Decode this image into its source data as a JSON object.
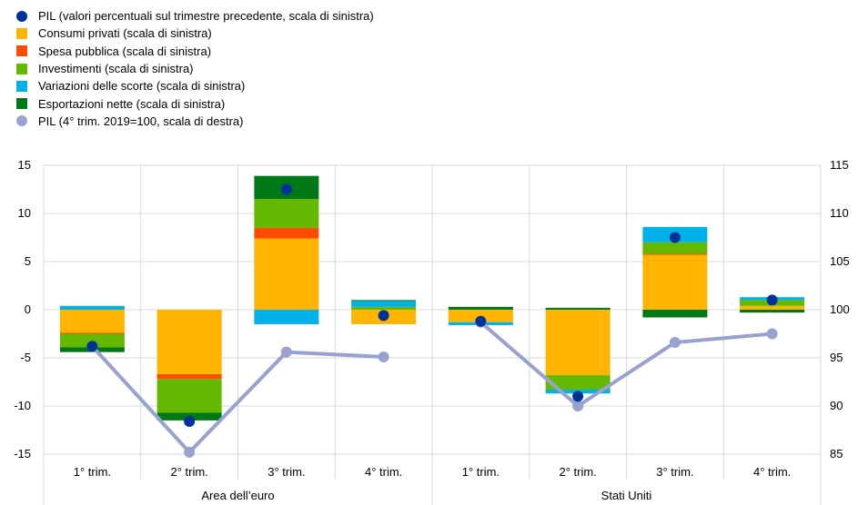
{
  "chart_data": {
    "type": "bar",
    "stacked": true,
    "groups": [
      "Area dell’euro",
      "Stati Uniti"
    ],
    "categories": [
      "1° trim.",
      "2° trim.",
      "3° trim.",
      "4° trim.",
      "1° trim.",
      "2° trim.",
      "3° trim.",
      "4° trim."
    ],
    "series": [
      {
        "name": "Consumi privati (scala di sinistra)",
        "color": "#FFB400",
        "values": [
          -2.4,
          -6.7,
          7.4,
          -1.5,
          -1.3,
          -6.8,
          5.7,
          0.4
        ]
      },
      {
        "name": "Spesa pubblica (scala di sinistra)",
        "color": "#FF4B00",
        "values": [
          -0.1,
          -0.5,
          1.1,
          0.0,
          0.0,
          0.0,
          0.1,
          0.0
        ]
      },
      {
        "name": "Investimenti (scala di sinistra)",
        "color": "#65B800",
        "values": [
          -1.4,
          -3.5,
          3.0,
          0.3,
          0.0,
          -1.5,
          1.2,
          0.6
        ]
      },
      {
        "name": "Variazioni delle scorte (scala di sinistra)",
        "color": "#00B1EA",
        "values": [
          0.4,
          0.0,
          -1.5,
          0.6,
          -0.3,
          -0.4,
          1.6,
          0.3
        ]
      },
      {
        "name": "Esportazioni nette (scala di sinistra)",
        "color": "#007816",
        "values": [
          -0.5,
          -0.8,
          2.4,
          0.1,
          0.3,
          0.2,
          -0.8,
          -0.3
        ]
      }
    ],
    "gdp_qoq": {
      "name": "PIL (valori percentuali sul trimestre precedente, scala di sinistra)",
      "color": "#003299",
      "values": [
        -3.8,
        -11.6,
        12.5,
        -0.6,
        -1.2,
        -9.0,
        7.5,
        1.0
      ]
    },
    "gdp_index": {
      "name": "PIL (4° trim. 2019=100, scala di destra)",
      "color": "#98A1D0",
      "values": [
        96.2,
        85.2,
        95.6,
        95.1,
        98.7,
        90.0,
        96.6,
        97.5
      ]
    },
    "ylim_left": [
      -15,
      15
    ],
    "yticks_left": [
      15,
      10,
      5,
      0,
      -5,
      -10,
      -15
    ],
    "ylim_right": [
      85,
      115
    ],
    "yticks_right": [
      115,
      110,
      105,
      100,
      95,
      90,
      85
    ],
    "legend_position": "top-left",
    "grid": true
  }
}
